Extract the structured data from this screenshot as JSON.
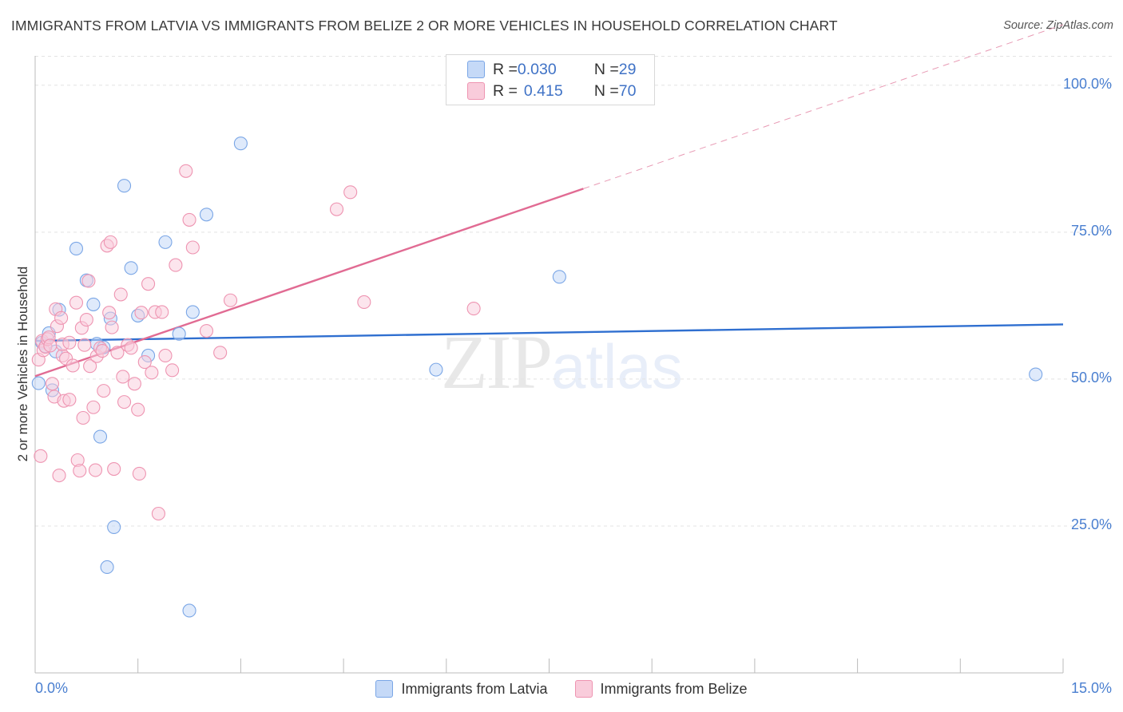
{
  "header": {
    "title": "IMMIGRANTS FROM LATVIA VS IMMIGRANTS FROM BELIZE 2 OR MORE VEHICLES IN HOUSEHOLD CORRELATION CHART",
    "source": "Source: ZipAtlas.com"
  },
  "watermark": {
    "zip": "ZIP",
    "atlas": "atlas"
  },
  "stats_legend": {
    "rows": [
      {
        "r_label": "R = ",
        "r_value": "0.030",
        "n_label": "N = ",
        "n_value": "29",
        "color": "#7aa6e6"
      },
      {
        "r_label": "R = ",
        "r_value": "0.415",
        "n_label": "N = ",
        "n_value": "70",
        "color": "#ee94b1"
      }
    ]
  },
  "legend": {
    "items": [
      {
        "label": "Immigrants from Latvia",
        "color": "#7aa6e6"
      },
      {
        "label": "Immigrants from Belize",
        "color": "#ee94b1"
      }
    ]
  },
  "chart_data": {
    "type": "scatter",
    "title": "IMMIGRANTS FROM LATVIA VS IMMIGRANTS FROM BELIZE 2 OR MORE VEHICLES IN HOUSEHOLD CORRELATION CHART",
    "xlabel": "",
    "ylabel": "2 or more Vehicles in Household",
    "xlim": [
      0,
      15
    ],
    "ylim": [
      0,
      105
    ],
    "x_tick_labels": [
      "0.0%",
      "15.0%"
    ],
    "y_ticks": [
      25,
      50,
      75,
      100
    ],
    "y_tick_labels": [
      "25.0%",
      "50.0%",
      "75.0%",
      "100.0%"
    ],
    "grid": true,
    "legend_position": "bottom",
    "series": [
      {
        "name": "Immigrants from Latvia",
        "color": "#7aa6e6",
        "points": [
          [
            0.05,
            49.3
          ],
          [
            0.1,
            56.2
          ],
          [
            0.15,
            55.6
          ],
          [
            0.2,
            57.8
          ],
          [
            0.25,
            48.1
          ],
          [
            0.3,
            54.7
          ],
          [
            0.35,
            61.8
          ],
          [
            0.6,
            72.2
          ],
          [
            0.75,
            66.8
          ],
          [
            0.85,
            62.7
          ],
          [
            0.9,
            56.0
          ],
          [
            0.95,
            40.2
          ],
          [
            1.0,
            55.4
          ],
          [
            1.05,
            18.0
          ],
          [
            1.1,
            60.3
          ],
          [
            1.15,
            24.8
          ],
          [
            1.3,
            82.9
          ],
          [
            1.4,
            68.9
          ],
          [
            1.5,
            60.8
          ],
          [
            1.65,
            54.0
          ],
          [
            1.9,
            73.3
          ],
          [
            2.1,
            57.7
          ],
          [
            2.25,
            10.6
          ],
          [
            2.3,
            61.4
          ],
          [
            2.5,
            78.0
          ],
          [
            3.0,
            90.1
          ],
          [
            5.85,
            51.6
          ],
          [
            7.65,
            67.4
          ],
          [
            14.6,
            50.8
          ]
        ]
      },
      {
        "name": "Immigrants from Belize",
        "color": "#ee94b1",
        "points": [
          [
            0.05,
            53.3
          ],
          [
            0.08,
            36.9
          ],
          [
            0.1,
            56.5
          ],
          [
            0.12,
            54.9
          ],
          [
            0.15,
            55.5
          ],
          [
            0.18,
            56.8
          ],
          [
            0.2,
            57.1
          ],
          [
            0.22,
            55.7
          ],
          [
            0.25,
            49.2
          ],
          [
            0.28,
            47.0
          ],
          [
            0.3,
            61.9
          ],
          [
            0.32,
            59.0
          ],
          [
            0.35,
            33.6
          ],
          [
            0.38,
            60.4
          ],
          [
            0.4,
            54.0
          ],
          [
            0.42,
            46.3
          ],
          [
            0.45,
            53.5
          ],
          [
            0.5,
            46.5
          ],
          [
            0.55,
            52.3
          ],
          [
            0.6,
            63.0
          ],
          [
            0.62,
            36.2
          ],
          [
            0.65,
            34.4
          ],
          [
            0.68,
            58.7
          ],
          [
            0.7,
            43.4
          ],
          [
            0.72,
            55.8
          ],
          [
            0.75,
            60.1
          ],
          [
            0.78,
            66.7
          ],
          [
            0.8,
            52.2
          ],
          [
            0.85,
            45.2
          ],
          [
            0.88,
            34.5
          ],
          [
            0.9,
            53.9
          ],
          [
            0.95,
            55.3
          ],
          [
            0.98,
            54.8
          ],
          [
            1.0,
            48.0
          ],
          [
            1.05,
            72.7
          ],
          [
            1.08,
            61.3
          ],
          [
            1.1,
            73.3
          ],
          [
            1.12,
            58.8
          ],
          [
            1.15,
            34.7
          ],
          [
            1.2,
            54.5
          ],
          [
            1.25,
            64.4
          ],
          [
            1.28,
            50.4
          ],
          [
            1.3,
            46.1
          ],
          [
            1.35,
            55.8
          ],
          [
            1.4,
            55.3
          ],
          [
            1.45,
            49.2
          ],
          [
            1.5,
            44.8
          ],
          [
            1.52,
            33.9
          ],
          [
            1.55,
            61.3
          ],
          [
            1.6,
            52.9
          ],
          [
            1.65,
            66.2
          ],
          [
            1.7,
            51.1
          ],
          [
            1.75,
            61.4
          ],
          [
            1.8,
            27.1
          ],
          [
            1.85,
            61.4
          ],
          [
            1.9,
            54.0
          ],
          [
            2.0,
            51.5
          ],
          [
            2.05,
            69.4
          ],
          [
            2.2,
            85.4
          ],
          [
            2.25,
            77.1
          ],
          [
            2.3,
            72.4
          ],
          [
            2.5,
            58.2
          ],
          [
            2.7,
            54.5
          ],
          [
            2.85,
            63.4
          ],
          [
            4.4,
            78.9
          ],
          [
            4.6,
            81.8
          ],
          [
            4.8,
            63.1
          ],
          [
            6.4,
            62.0
          ],
          [
            0.4,
            55.9
          ],
          [
            0.5,
            56.2
          ]
        ]
      }
    ],
    "trend_lines": [
      {
        "series": "Immigrants from Latvia",
        "color": "#2f6fd0",
        "x": [
          0,
          15
        ],
        "y": [
          56.5,
          59.3
        ],
        "style": "solid"
      },
      {
        "series": "Immigrants from Belize",
        "color": "#e16b93",
        "x": [
          0,
          8.0
        ],
        "y": [
          50.5,
          82.4
        ],
        "style": "solid"
      },
      {
        "series": "Immigrants from Belize",
        "color": "#e89ab4",
        "x": [
          8.0,
          15
        ],
        "y": [
          82.4,
          110.3
        ],
        "style": "dashed"
      }
    ]
  }
}
